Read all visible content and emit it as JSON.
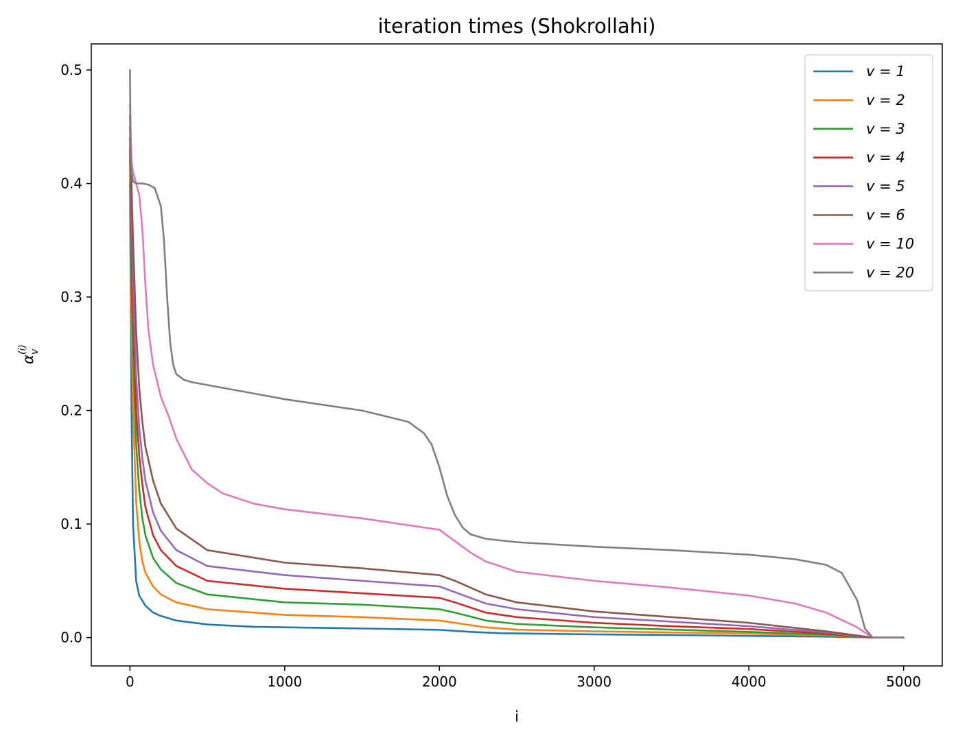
{
  "chart_data": {
    "type": "line",
    "title": "iteration times (Shokrollahi)",
    "xlabel": "i",
    "ylabel": "α",
    "ylabel_sub": "v",
    "ylabel_sup": "(i)",
    "xlim": [
      -250,
      5250
    ],
    "ylim": [
      -0.025,
      0.523
    ],
    "xticks": [
      0,
      1000,
      2000,
      3000,
      4000,
      5000
    ],
    "xtick_labels": [
      "0",
      "1000",
      "2000",
      "3000",
      "4000",
      "5000"
    ],
    "yticks": [
      0.0,
      0.1,
      0.2,
      0.3,
      0.4,
      0.5
    ],
    "ytick_labels": [
      "0.0",
      "0.1",
      "0.2",
      "0.3",
      "0.4",
      "0.5"
    ],
    "grid": false,
    "legend_position": "top-right",
    "series": [
      {
        "name": "v = 1",
        "color": "#1f77b4",
        "x": [
          0,
          5,
          10,
          20,
          40,
          60,
          100,
          150,
          200,
          300,
          500,
          800,
          1000,
          1500,
          2000,
          2200,
          2400,
          3000,
          3500,
          4000,
          4500,
          4800,
          5000
        ],
        "y": [
          0.4,
          0.3,
          0.2,
          0.1,
          0.05,
          0.037,
          0.028,
          0.022,
          0.019,
          0.015,
          0.0115,
          0.0095,
          0.009,
          0.008,
          0.0068,
          0.005,
          0.0038,
          0.0028,
          0.0022,
          0.0015,
          0.0008,
          0,
          0
        ]
      },
      {
        "name": "v = 2",
        "color": "#ff7f0e",
        "x": [
          0,
          5,
          10,
          20,
          40,
          60,
          80,
          100,
          150,
          200,
          300,
          500,
          1000,
          1500,
          2000,
          2100,
          2300,
          2500,
          3000,
          3500,
          4000,
          4500,
          4800,
          5000
        ],
        "y": [
          0.42,
          0.35,
          0.28,
          0.2,
          0.12,
          0.085,
          0.067,
          0.057,
          0.045,
          0.038,
          0.031,
          0.025,
          0.02,
          0.018,
          0.015,
          0.013,
          0.009,
          0.007,
          0.0055,
          0.0045,
          0.0035,
          0.0018,
          0,
          0
        ]
      },
      {
        "name": "v = 3",
        "color": "#2ca02c",
        "x": [
          0,
          5,
          10,
          20,
          40,
          60,
          80,
          100,
          150,
          200,
          300,
          500,
          1000,
          1500,
          2000,
          2100,
          2300,
          2500,
          3000,
          3500,
          4000,
          4500,
          4800,
          5000
        ],
        "y": [
          0.43,
          0.38,
          0.32,
          0.25,
          0.17,
          0.13,
          0.105,
          0.09,
          0.07,
          0.06,
          0.048,
          0.038,
          0.031,
          0.029,
          0.025,
          0.022,
          0.015,
          0.012,
          0.009,
          0.007,
          0.005,
          0.0025,
          0,
          0
        ]
      },
      {
        "name": "v = 4",
        "color": "#d62728",
        "x": [
          0,
          5,
          10,
          20,
          40,
          60,
          80,
          100,
          150,
          200,
          300,
          500,
          1000,
          1500,
          2000,
          2100,
          2300,
          2500,
          3000,
          3500,
          4000,
          4500,
          4800,
          5000
        ],
        "y": [
          0.44,
          0.4,
          0.35,
          0.28,
          0.2,
          0.16,
          0.135,
          0.115,
          0.09,
          0.077,
          0.063,
          0.05,
          0.043,
          0.039,
          0.035,
          0.031,
          0.022,
          0.018,
          0.013,
          0.01,
          0.0075,
          0.0035,
          0,
          0
        ]
      },
      {
        "name": "v = 5",
        "color": "#9467bd",
        "x": [
          0,
          5,
          10,
          20,
          40,
          60,
          80,
          100,
          150,
          200,
          300,
          500,
          1000,
          1500,
          2000,
          2100,
          2300,
          2500,
          3000,
          3500,
          4000,
          4500,
          4800,
          5000
        ],
        "y": [
          0.45,
          0.42,
          0.38,
          0.31,
          0.23,
          0.185,
          0.158,
          0.138,
          0.11,
          0.094,
          0.077,
          0.063,
          0.055,
          0.05,
          0.045,
          0.04,
          0.03,
          0.025,
          0.018,
          0.014,
          0.01,
          0.0045,
          0,
          0
        ]
      },
      {
        "name": "v = 6",
        "color": "#8c564b",
        "x": [
          0,
          5,
          10,
          20,
          40,
          60,
          80,
          100,
          150,
          200,
          300,
          500,
          1000,
          1500,
          2000,
          2100,
          2300,
          2500,
          3000,
          3500,
          4000,
          4500,
          4800,
          5000
        ],
        "y": [
          0.46,
          0.43,
          0.4,
          0.35,
          0.27,
          0.22,
          0.19,
          0.168,
          0.138,
          0.118,
          0.096,
          0.077,
          0.066,
          0.061,
          0.055,
          0.05,
          0.038,
          0.031,
          0.023,
          0.018,
          0.013,
          0.0055,
          0,
          0
        ]
      },
      {
        "name": "v = 10",
        "color": "#e377c2",
        "x": [
          0,
          10,
          20,
          40,
          60,
          80,
          100,
          120,
          150,
          200,
          250,
          300,
          400,
          500,
          600,
          800,
          1000,
          1500,
          2000,
          2050,
          2100,
          2200,
          2300,
          2500,
          3000,
          3500,
          4000,
          4300,
          4500,
          4700,
          4800,
          5000
        ],
        "y": [
          0.47,
          0.42,
          0.41,
          0.4,
          0.39,
          0.36,
          0.31,
          0.27,
          0.24,
          0.212,
          0.195,
          0.175,
          0.148,
          0.136,
          0.127,
          0.118,
          0.113,
          0.105,
          0.095,
          0.09,
          0.085,
          0.075,
          0.067,
          0.058,
          0.05,
          0.044,
          0.037,
          0.03,
          0.022,
          0.009,
          0,
          0
        ]
      },
      {
        "name": "v = 20",
        "color": "#7f7f7f",
        "x": [
          0,
          5,
          10,
          20,
          40,
          80,
          120,
          160,
          200,
          220,
          240,
          260,
          280,
          300,
          350,
          400,
          600,
          800,
          1000,
          1500,
          1800,
          1900,
          1950,
          2000,
          2050,
          2100,
          2150,
          2200,
          2300,
          2500,
          3000,
          3500,
          4000,
          4300,
          4500,
          4600,
          4700,
          4750,
          4800,
          5000
        ],
        "y": [
          0.5,
          0.43,
          0.41,
          0.402,
          0.4,
          0.4,
          0.399,
          0.396,
          0.38,
          0.35,
          0.3,
          0.26,
          0.24,
          0.232,
          0.227,
          0.225,
          0.22,
          0.215,
          0.21,
          0.2,
          0.19,
          0.18,
          0.17,
          0.15,
          0.125,
          0.108,
          0.097,
          0.091,
          0.087,
          0.084,
          0.08,
          0.077,
          0.073,
          0.069,
          0.064,
          0.057,
          0.033,
          0.008,
          0,
          0
        ]
      }
    ]
  }
}
